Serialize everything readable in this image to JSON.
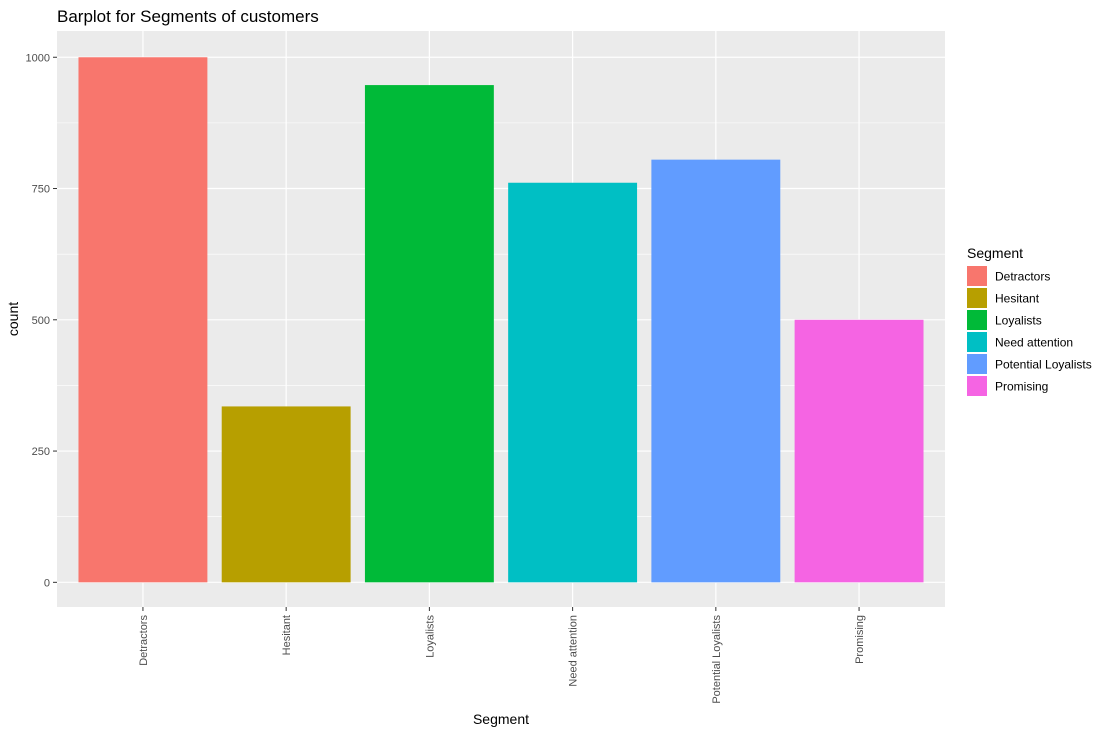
{
  "chart_data": {
    "type": "bar",
    "title": "Barplot for Segments of customers",
    "xlabel": "Segment",
    "ylabel": "count",
    "categories": [
      "Detractors",
      "Hesitant",
      "Loyalists",
      "Need attention",
      "Potential Loyalists",
      "Promising"
    ],
    "values": [
      1000,
      335,
      947,
      761,
      805,
      500
    ],
    "colors": [
      "#F8766D",
      "#B79F00",
      "#00BA38",
      "#00BFC4",
      "#619CFF",
      "#F564E3"
    ],
    "ylim": [
      -47,
      1050
    ],
    "yticks": [
      0,
      250,
      500,
      750,
      1000
    ],
    "ytick_labels": [
      "0",
      "250",
      "500",
      "750",
      "1000"
    ],
    "grid": true,
    "legend": {
      "title": "Segment",
      "position": "right",
      "entries": [
        "Detractors",
        "Hesitant",
        "Loyalists",
        "Need attention",
        "Potential Loyalists",
        "Promising"
      ]
    },
    "panel_background": "#EBEBEB",
    "grid_color": "#FFFFFF"
  }
}
